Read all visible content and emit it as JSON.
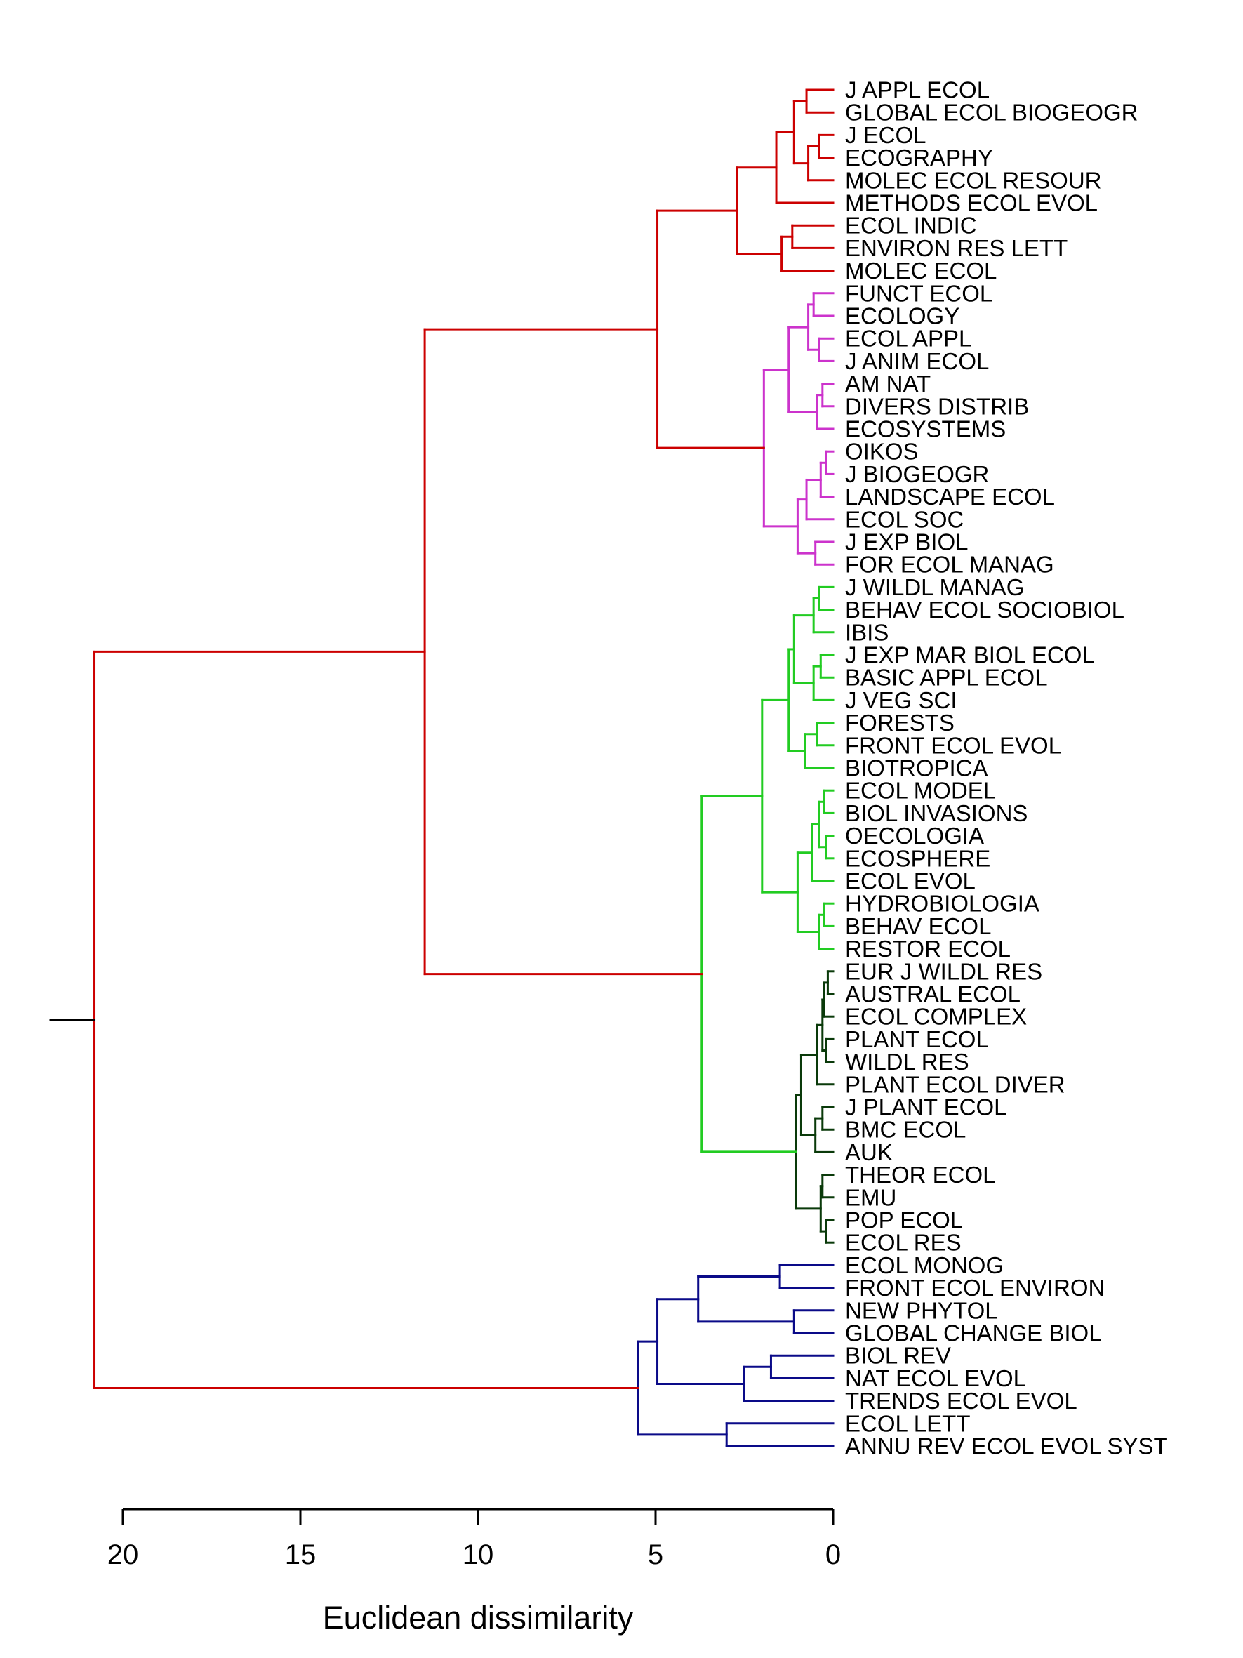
{
  "chart_data": {
    "type": "dendrogram",
    "orientation": "horizontal",
    "leaf_labels_side": "right",
    "xlabel": "Euclidean dissimilarity",
    "xlim": [
      21,
      0
    ],
    "x_ticks": [
      20,
      15,
      10,
      5,
      0
    ],
    "x_tick_labels": [
      "20",
      "15",
      "10",
      "5",
      "0"
    ],
    "colors": {
      "red": "#cc0000",
      "magenta": "#cc33cc",
      "green": "#22cc22",
      "darkgreen": "#0a3a0a",
      "navy": "#0a0a88",
      "root": "#000000"
    },
    "leaves": [
      {
        "label": "J APPL ECOL",
        "cluster": "red"
      },
      {
        "label": "GLOBAL ECOL BIOGEOGR",
        "cluster": "red"
      },
      {
        "label": "J ECOL",
        "cluster": "red"
      },
      {
        "label": "ECOGRAPHY",
        "cluster": "red"
      },
      {
        "label": "MOLEC ECOL RESOUR",
        "cluster": "red"
      },
      {
        "label": "METHODS ECOL EVOL",
        "cluster": "red"
      },
      {
        "label": "ECOL INDIC",
        "cluster": "red"
      },
      {
        "label": "ENVIRON RES LETT",
        "cluster": "red"
      },
      {
        "label": "MOLEC ECOL",
        "cluster": "red"
      },
      {
        "label": "FUNCT ECOL",
        "cluster": "magenta"
      },
      {
        "label": "ECOLOGY",
        "cluster": "magenta"
      },
      {
        "label": "ECOL APPL",
        "cluster": "magenta"
      },
      {
        "label": "J ANIM ECOL",
        "cluster": "magenta"
      },
      {
        "label": "AM NAT",
        "cluster": "magenta"
      },
      {
        "label": "DIVERS DISTRIB",
        "cluster": "magenta"
      },
      {
        "label": "ECOSYSTEMS",
        "cluster": "magenta"
      },
      {
        "label": "OIKOS",
        "cluster": "magenta"
      },
      {
        "label": "J BIOGEOGR",
        "cluster": "magenta"
      },
      {
        "label": "LANDSCAPE ECOL",
        "cluster": "magenta"
      },
      {
        "label": "ECOL SOC",
        "cluster": "magenta"
      },
      {
        "label": "J EXP BIOL",
        "cluster": "magenta"
      },
      {
        "label": "FOR ECOL MANAG",
        "cluster": "magenta"
      },
      {
        "label": "J WILDL MANAG",
        "cluster": "green"
      },
      {
        "label": "BEHAV ECOL SOCIOBIOL",
        "cluster": "green"
      },
      {
        "label": "IBIS",
        "cluster": "green"
      },
      {
        "label": "J EXP MAR BIOL ECOL",
        "cluster": "green"
      },
      {
        "label": "BASIC APPL ECOL",
        "cluster": "green"
      },
      {
        "label": "J VEG SCI",
        "cluster": "green"
      },
      {
        "label": "FORESTS",
        "cluster": "green"
      },
      {
        "label": "FRONT ECOL EVOL",
        "cluster": "green"
      },
      {
        "label": "BIOTROPICA",
        "cluster": "green"
      },
      {
        "label": "ECOL MODEL",
        "cluster": "green"
      },
      {
        "label": "BIOL INVASIONS",
        "cluster": "green"
      },
      {
        "label": "OECOLOGIA",
        "cluster": "green"
      },
      {
        "label": "ECOSPHERE",
        "cluster": "green"
      },
      {
        "label": "ECOL EVOL",
        "cluster": "green"
      },
      {
        "label": "HYDROBIOLOGIA",
        "cluster": "green"
      },
      {
        "label": "BEHAV ECOL",
        "cluster": "green"
      },
      {
        "label": "RESTOR ECOL",
        "cluster": "green"
      },
      {
        "label": "EUR J WILDL RES",
        "cluster": "darkgreen"
      },
      {
        "label": "AUSTRAL ECOL",
        "cluster": "darkgreen"
      },
      {
        "label": "ECOL COMPLEX",
        "cluster": "darkgreen"
      },
      {
        "label": "PLANT ECOL",
        "cluster": "darkgreen"
      },
      {
        "label": "WILDL RES",
        "cluster": "darkgreen"
      },
      {
        "label": "PLANT ECOL DIVER",
        "cluster": "darkgreen"
      },
      {
        "label": "J PLANT ECOL",
        "cluster": "darkgreen"
      },
      {
        "label": "BMC ECOL",
        "cluster": "darkgreen"
      },
      {
        "label": "AUK",
        "cluster": "darkgreen"
      },
      {
        "label": "THEOR ECOL",
        "cluster": "darkgreen"
      },
      {
        "label": "EMU",
        "cluster": "darkgreen"
      },
      {
        "label": "POP ECOL",
        "cluster": "darkgreen"
      },
      {
        "label": "ECOL RES",
        "cluster": "darkgreen"
      },
      {
        "label": "ECOL MONOG",
        "cluster": "navy"
      },
      {
        "label": "FRONT ECOL ENVIRON",
        "cluster": "navy"
      },
      {
        "label": "NEW PHYTOL",
        "cluster": "navy"
      },
      {
        "label": "GLOBAL CHANGE BIOL",
        "cluster": "navy"
      },
      {
        "label": "BIOL REV",
        "cluster": "navy"
      },
      {
        "label": "NAT ECOL EVOL",
        "cluster": "navy"
      },
      {
        "label": "TRENDS ECOL EVOL",
        "cluster": "navy"
      },
      {
        "label": "ECOL LETT",
        "cluster": "navy"
      },
      {
        "label": "ANNU REV ECOL EVOL SYST",
        "cluster": "navy"
      }
    ],
    "tree": {
      "h": 20.8,
      "color": "red",
      "children": [
        {
          "h": 11.5,
          "color": "red",
          "children": [
            {
              "h": 4.95,
              "color": "red",
              "children": [
                {
                  "h": 2.7,
                  "color": "red",
                  "children": [
                    {
                      "h": 1.6,
                      "color": "red",
                      "children": [
                        {
                          "h": 1.1,
                          "color": "red",
                          "children": [
                            {
                              "h": 0.75,
                              "color": "red",
                              "children": [
                                0,
                                1
                              ]
                            },
                            {
                              "h": 0.7,
                              "color": "red",
                              "children": [
                                {
                                  "h": 0.4,
                                  "color": "red",
                                  "children": [
                                    2,
                                    3
                                  ]
                                },
                                4
                              ]
                            }
                          ]
                        },
                        5
                      ]
                    },
                    {
                      "h": 1.45,
                      "color": "red",
                      "children": [
                        {
                          "h": 1.15,
                          "color": "red",
                          "children": [
                            6,
                            7
                          ]
                        },
                        8
                      ]
                    }
                  ]
                },
                {
                  "h": 1.95,
                  "color": "magenta",
                  "children": [
                    {
                      "h": 1.25,
                      "color": "magenta",
                      "children": [
                        {
                          "h": 0.7,
                          "color": "magenta",
                          "children": [
                            {
                              "h": 0.55,
                              "color": "magenta",
                              "children": [
                                9,
                                10
                              ]
                            },
                            {
                              "h": 0.4,
                              "color": "magenta",
                              "children": [
                                11,
                                12
                              ]
                            }
                          ]
                        },
                        {
                          "h": 0.45,
                          "color": "magenta",
                          "children": [
                            {
                              "h": 0.3,
                              "color": "magenta",
                              "children": [
                                13,
                                14
                              ]
                            },
                            15
                          ]
                        }
                      ]
                    },
                    {
                      "h": 1.0,
                      "color": "magenta",
                      "children": [
                        {
                          "h": 0.75,
                          "color": "magenta",
                          "children": [
                            {
                              "h": 0.35,
                              "color": "magenta",
                              "children": [
                                {
                                  "h": 0.2,
                                  "color": "magenta",
                                  "children": [
                                    16,
                                    17
                                  ]
                                },
                                18
                              ]
                            },
                            19
                          ]
                        },
                        {
                          "h": 0.5,
                          "color": "magenta",
                          "children": [
                            20,
                            21
                          ]
                        }
                      ]
                    }
                  ]
                }
              ]
            },
            {
              "h": 3.7,
              "color": "green",
              "children": [
                {
                  "h": 2.0,
                  "color": "green",
                  "children": [
                    {
                      "h": 1.25,
                      "color": "green",
                      "children": [
                        {
                          "h": 1.1,
                          "color": "green",
                          "children": [
                            {
                              "h": 0.55,
                              "color": "green",
                              "children": [
                                {
                                  "h": 0.4,
                                  "color": "green",
                                  "children": [
                                    22,
                                    23
                                  ]
                                },
                                24
                              ]
                            },
                            {
                              "h": 0.55,
                              "color": "green",
                              "children": [
                                {
                                  "h": 0.35,
                                  "color": "green",
                                  "children": [
                                    25,
                                    26
                                  ]
                                },
                                27
                              ]
                            }
                          ]
                        },
                        {
                          "h": 0.8,
                          "color": "green",
                          "children": [
                            {
                              "h": 0.45,
                              "color": "green",
                              "children": [
                                28,
                                29
                              ]
                            },
                            30
                          ]
                        }
                      ]
                    },
                    {
                      "h": 1.0,
                      "color": "green",
                      "children": [
                        {
                          "h": 0.6,
                          "color": "green",
                          "children": [
                            {
                              "h": 0.4,
                              "color": "green",
                              "children": [
                                {
                                  "h": 0.25,
                                  "color": "green",
                                  "children": [
                                    31,
                                    32
                                  ]
                                },
                                {
                                  "h": 0.2,
                                  "color": "green",
                                  "children": [
                                    33,
                                    34
                                  ]
                                }
                              ]
                            },
                            35
                          ]
                        },
                        {
                          "h": 0.4,
                          "color": "green",
                          "children": [
                            {
                              "h": 0.25,
                              "color": "green",
                              "children": [
                                36,
                                37
                              ]
                            },
                            38
                          ]
                        }
                      ]
                    }
                  ]
                },
                {
                  "h": 1.05,
                  "color": "darkgreen",
                  "children": [
                    {
                      "h": 0.9,
                      "color": "darkgreen",
                      "children": [
                        {
                          "h": 0.45,
                          "color": "darkgreen",
                          "children": [
                            {
                              "h": 0.3,
                              "color": "darkgreen",
                              "children": [
                                {
                                  "h": 0.25,
                                  "color": "darkgreen",
                                  "children": [
                                    {
                                      "h": 0.15,
                                      "color": "darkgreen",
                                      "children": [
                                        39,
                                        40
                                      ]
                                    },
                                    41
                                  ]
                                },
                                {
                                  "h": 0.2,
                                  "color": "darkgreen",
                                  "children": [
                                    42,
                                    43
                                  ]
                                }
                              ]
                            },
                            44
                          ]
                        },
                        {
                          "h": 0.5,
                          "color": "darkgreen",
                          "children": [
                            {
                              "h": 0.3,
                              "color": "darkgreen",
                              "children": [
                                45,
                                46
                              ]
                            },
                            47
                          ]
                        }
                      ]
                    },
                    {
                      "h": 0.35,
                      "color": "darkgreen",
                      "children": [
                        {
                          "h": 0.3,
                          "color": "darkgreen",
                          "children": [
                            48,
                            49
                          ]
                        },
                        {
                          "h": 0.2,
                          "color": "darkgreen",
                          "children": [
                            50,
                            51
                          ]
                        }
                      ]
                    }
                  ]
                }
              ]
            }
          ]
        },
        {
          "h": 5.5,
          "color": "navy",
          "children": [
            {
              "h": 4.95,
              "color": "navy",
              "children": [
                {
                  "h": 3.8,
                  "color": "navy",
                  "children": [
                    {
                      "h": 1.5,
                      "color": "navy",
                      "children": [
                        52,
                        53
                      ]
                    },
                    {
                      "h": 1.1,
                      "color": "navy",
                      "children": [
                        54,
                        55
                      ]
                    }
                  ]
                },
                {
                  "h": 2.5,
                  "color": "navy",
                  "children": [
                    {
                      "h": 1.75,
                      "color": "navy",
                      "children": [
                        56,
                        57
                      ]
                    },
                    58
                  ]
                }
              ]
            },
            {
              "h": 3.0,
              "color": "navy",
              "children": [
                59,
                60
              ]
            }
          ]
        }
      ]
    }
  }
}
